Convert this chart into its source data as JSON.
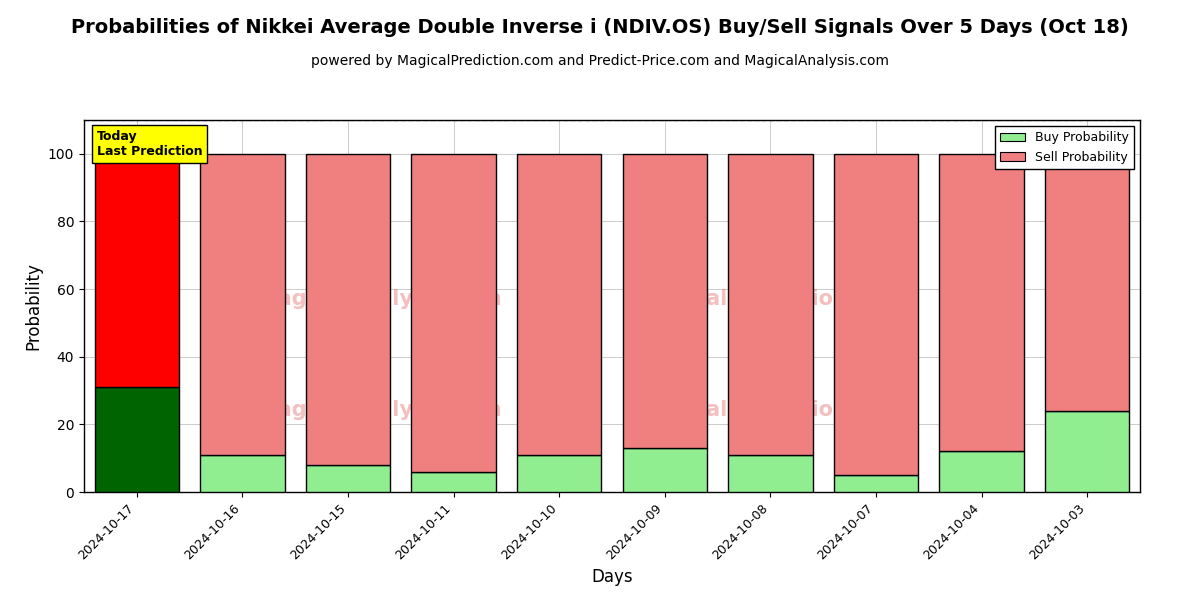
{
  "title": "Probabilities of Nikkei Average Double Inverse i (NDIV.OS) Buy/Sell Signals Over 5 Days (Oct 18)",
  "subtitle": "powered by MagicalPrediction.com and Predict-Price.com and MagicalAnalysis.com",
  "xlabel": "Days",
  "ylabel": "Probability",
  "categories": [
    "2024-10-17",
    "2024-10-16",
    "2024-10-15",
    "2024-10-11",
    "2024-10-10",
    "2024-10-09",
    "2024-10-08",
    "2024-10-07",
    "2024-10-04",
    "2024-10-03"
  ],
  "buy_values": [
    31,
    11,
    8,
    6,
    11,
    13,
    11,
    5,
    12,
    24
  ],
  "sell_values": [
    69,
    89,
    92,
    94,
    89,
    87,
    89,
    95,
    88,
    76
  ],
  "today_bar_index": 0,
  "today_buy_color": "#006400",
  "today_sell_color": "#FF0000",
  "other_buy_color": "#90EE90",
  "other_sell_color": "#F08080",
  "bar_edge_color": "black",
  "bar_linewidth": 1.0,
  "ylim": [
    0,
    110
  ],
  "yticks": [
    0,
    20,
    40,
    60,
    80,
    100
  ],
  "dashed_line_y": 110,
  "today_label": "Today\nLast Prediction",
  "today_label_bg": "#FFFF00",
  "legend_buy_label": "Buy Probability",
  "legend_sell_label": "Sell Probability",
  "bg_color": "#ffffff",
  "grid_color": "#cccccc",
  "title_fontsize": 14,
  "subtitle_fontsize": 10,
  "axis_label_fontsize": 12,
  "tick_fontsize": 9
}
